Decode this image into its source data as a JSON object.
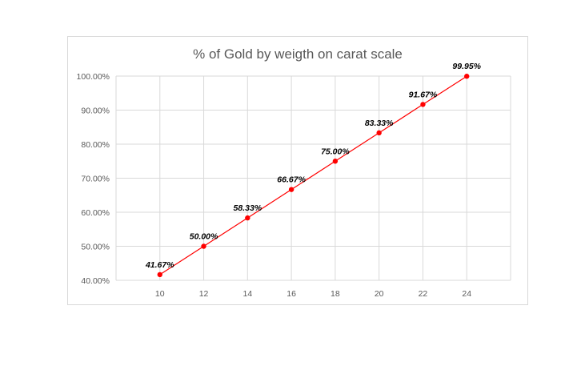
{
  "chart_data": {
    "type": "line",
    "title": "% of Gold by weigth on carat scale",
    "xlabel": "",
    "ylabel": "",
    "x": [
      10,
      12,
      14,
      16,
      18,
      20,
      22,
      24
    ],
    "x_ticks": [
      "10",
      "12",
      "14",
      "16",
      "18",
      "20",
      "22",
      "24"
    ],
    "series": [
      {
        "values": [
          41.67,
          50.0,
          58.33,
          66.67,
          75.0,
          83.33,
          91.67,
          99.95
        ],
        "data_labels": [
          "41.67%",
          "50.00%",
          "58.33%",
          "66.67%",
          "75.00%",
          "83.33%",
          "91.67%",
          "99.95%"
        ]
      }
    ],
    "ylim": [
      40,
      100
    ],
    "y_ticks": [
      "40.00%",
      "50.00%",
      "60.00%",
      "70.00%",
      "80.00%",
      "90.00%",
      "100.00%"
    ],
    "grid": true,
    "legend": "none",
    "colors": {
      "line": "#ff0000",
      "marker": "#ff0000",
      "grid": "#d9d9d9"
    }
  }
}
